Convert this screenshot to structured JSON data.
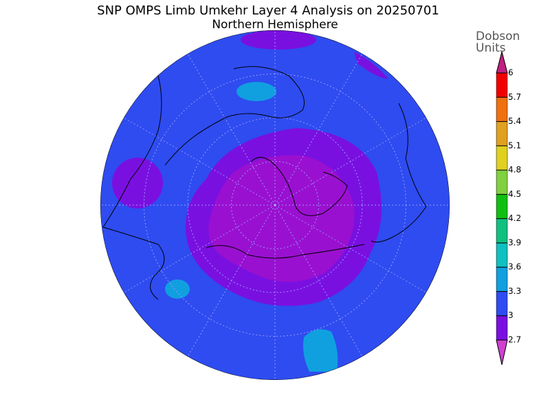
{
  "title": "SNP OMPS Limb Umkehr Layer 4 Analysis on 20250701",
  "subtitle": "Northern Hemisphere",
  "colorbar": {
    "label": [
      "Dobson",
      "Units"
    ],
    "ticks": [
      2.7,
      3,
      3.3,
      3.6,
      3.9,
      4.2,
      4.5,
      4.8,
      5.1,
      5.4,
      5.7,
      6
    ],
    "colors": [
      "#d040d0",
      "#7a10e0",
      "#2e4cf0",
      "#10a0e0",
      "#10c0c0",
      "#10c080",
      "#10c010",
      "#80d040",
      "#e0d020",
      "#e0a020",
      "#f07010",
      "#f00000",
      "#c02080"
    ]
  }
}
